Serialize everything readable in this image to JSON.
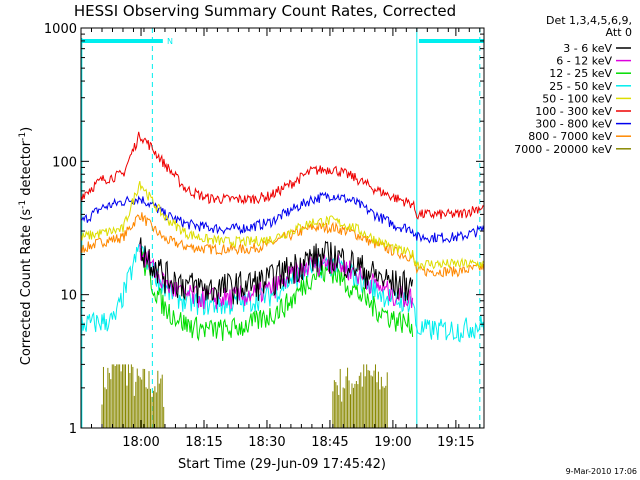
{
  "chart_data": {
    "type": "line",
    "title": "HESSI Observing Summary Count Rates, Corrected",
    "xlabel": "Start Time (29-Jun-09 17:45:42)",
    "ylabel": "Corrected Count Rate (s⁻¹ detector⁻¹)",
    "ylabel_parts": [
      "Corrected Count Rate (s",
      "-1",
      " detector",
      "-1",
      ")"
    ],
    "yscale": "log",
    "ylim": [
      1,
      1000
    ],
    "xlim_minutes": [
      0,
      96
    ],
    "x_unit": "minutes after 17:45:42",
    "x_ticks": [
      {
        "t": 14.3,
        "label": "18:00"
      },
      {
        "t": 29.3,
        "label": "18:15"
      },
      {
        "t": 44.3,
        "label": "18:30"
      },
      {
        "t": 59.3,
        "label": "18:45"
      },
      {
        "t": 74.3,
        "label": "19:00"
      },
      {
        "t": 89.3,
        "label": "19:15"
      }
    ],
    "y_ticks": [
      {
        "v": 1,
        "label": "1"
      },
      {
        "v": 10,
        "label": "10"
      },
      {
        "v": 100,
        "label": "100"
      },
      {
        "v": 1000,
        "label": "1000"
      }
    ],
    "legend_header": [
      "Det 1,3,4,5,6,9,",
      "Att 0"
    ],
    "legend_position": "right",
    "timestamp": "9-Mar-2010 17:06",
    "marker_label": "N",
    "series": [
      {
        "name": "3 - 6 keV",
        "color": "#000000",
        "x": [
          14,
          17,
          20,
          25,
          30,
          35,
          40,
          45,
          50,
          55,
          60,
          65,
          70,
          75,
          79
        ],
        "values": [
          23,
          18,
          14,
          12,
          11,
          11.5,
          12,
          13,
          16,
          19,
          20,
          17,
          14,
          12,
          12
        ]
      },
      {
        "name": "6 - 12 keV",
        "color": "#dd00dd",
        "x": [
          14,
          17,
          20,
          25,
          30,
          35,
          40,
          45,
          50,
          55,
          60,
          65,
          70,
          75,
          79
        ],
        "values": [
          22,
          16,
          12,
          10,
          9.5,
          9.5,
          10,
          11,
          14,
          17,
          18,
          15,
          12,
          10,
          9.5
        ]
      },
      {
        "name": "12 - 25 keV",
        "color": "#00dd00",
        "x": [
          14,
          17,
          20,
          25,
          30,
          35,
          40,
          45,
          50,
          55,
          60,
          65,
          70,
          75,
          79
        ],
        "values": [
          21,
          12,
          8,
          6,
          5.5,
          5.5,
          6,
          7,
          9,
          14,
          15,
          11,
          8,
          6.5,
          6
        ]
      },
      {
        "name": "25 - 50 keV",
        "color": "#00eeee",
        "x": [
          0,
          8,
          14,
          17,
          20,
          25,
          30,
          35,
          40,
          45,
          50,
          55,
          60,
          65,
          70,
          75,
          79,
          80,
          85,
          90,
          96
        ],
        "values": [
          6,
          6.5,
          23,
          16,
          11,
          9,
          8.5,
          8.5,
          9,
          10,
          13,
          16,
          17,
          14,
          11,
          9,
          9,
          5.5,
          5.5,
          5.5,
          6
        ]
      },
      {
        "name": "50 - 100 keV",
        "color": "#dddd00",
        "x": [
          0,
          5,
          10,
          14,
          17,
          20,
          25,
          30,
          35,
          40,
          45,
          50,
          55,
          60,
          65,
          70,
          75,
          79,
          80,
          85,
          90,
          96
        ],
        "values": [
          27,
          29,
          31,
          70,
          50,
          38,
          29,
          26,
          25,
          25,
          26,
          30,
          35,
          36,
          32,
          26,
          22,
          20,
          17,
          17,
          17,
          17
        ]
      },
      {
        "name": "100 - 300 keV",
        "color": "#ee0000",
        "x": [
          0,
          5,
          10,
          14,
          17,
          20,
          25,
          30,
          35,
          40,
          45,
          50,
          55,
          60,
          65,
          70,
          75,
          79,
          80,
          85,
          90,
          96
        ],
        "values": [
          55,
          73,
          80,
          160,
          125,
          95,
          62,
          53,
          52,
          52,
          55,
          68,
          85,
          88,
          76,
          62,
          53,
          48,
          40,
          40,
          40,
          46
        ]
      },
      {
        "name": "300 - 800 keV",
        "color": "#0000ee",
        "x": [
          0,
          5,
          10,
          14,
          17,
          20,
          25,
          30,
          35,
          40,
          45,
          50,
          55,
          60,
          65,
          70,
          75,
          79,
          80,
          85,
          90,
          96
        ],
        "values": [
          35,
          45,
          50,
          53,
          47,
          40,
          34,
          32,
          31,
          32,
          35,
          43,
          52,
          56,
          50,
          40,
          33,
          31,
          27,
          27,
          27,
          31
        ]
      },
      {
        "name": "800 - 7000 keV",
        "color": "#ff8800",
        "x": [
          0,
          5,
          10,
          14,
          17,
          20,
          25,
          30,
          35,
          40,
          45,
          50,
          55,
          60,
          65,
          70,
          75,
          79,
          80,
          85,
          90,
          96
        ],
        "values": [
          22,
          25,
          27,
          40,
          32,
          26,
          23,
          22,
          22,
          22,
          24,
          28,
          32,
          32,
          29,
          24,
          21,
          19,
          15,
          15,
          15,
          16
        ]
      },
      {
        "name": "7000 - 20000 keV",
        "color": "#888800",
        "x": [
          5,
          10,
          13,
          17,
          20,
          60,
          63,
          68,
          73
        ],
        "values": [
          2,
          3,
          2,
          2,
          1.8,
          2,
          2,
          2.3,
          2
        ],
        "spans": [
          [
            5,
            20
          ],
          [
            60,
            73
          ]
        ]
      }
    ],
    "attenuator_bars": [
      [
        0,
        19.5
      ],
      [
        80.5,
        96
      ]
    ],
    "vertical_markers": [
      {
        "t": 17,
        "style": "dashed",
        "color": "#00eeee"
      },
      {
        "t": 80,
        "style": "solid",
        "color": "#00eeee"
      },
      {
        "t": 95,
        "style": "dashed",
        "color": "#00eeee"
      }
    ]
  }
}
